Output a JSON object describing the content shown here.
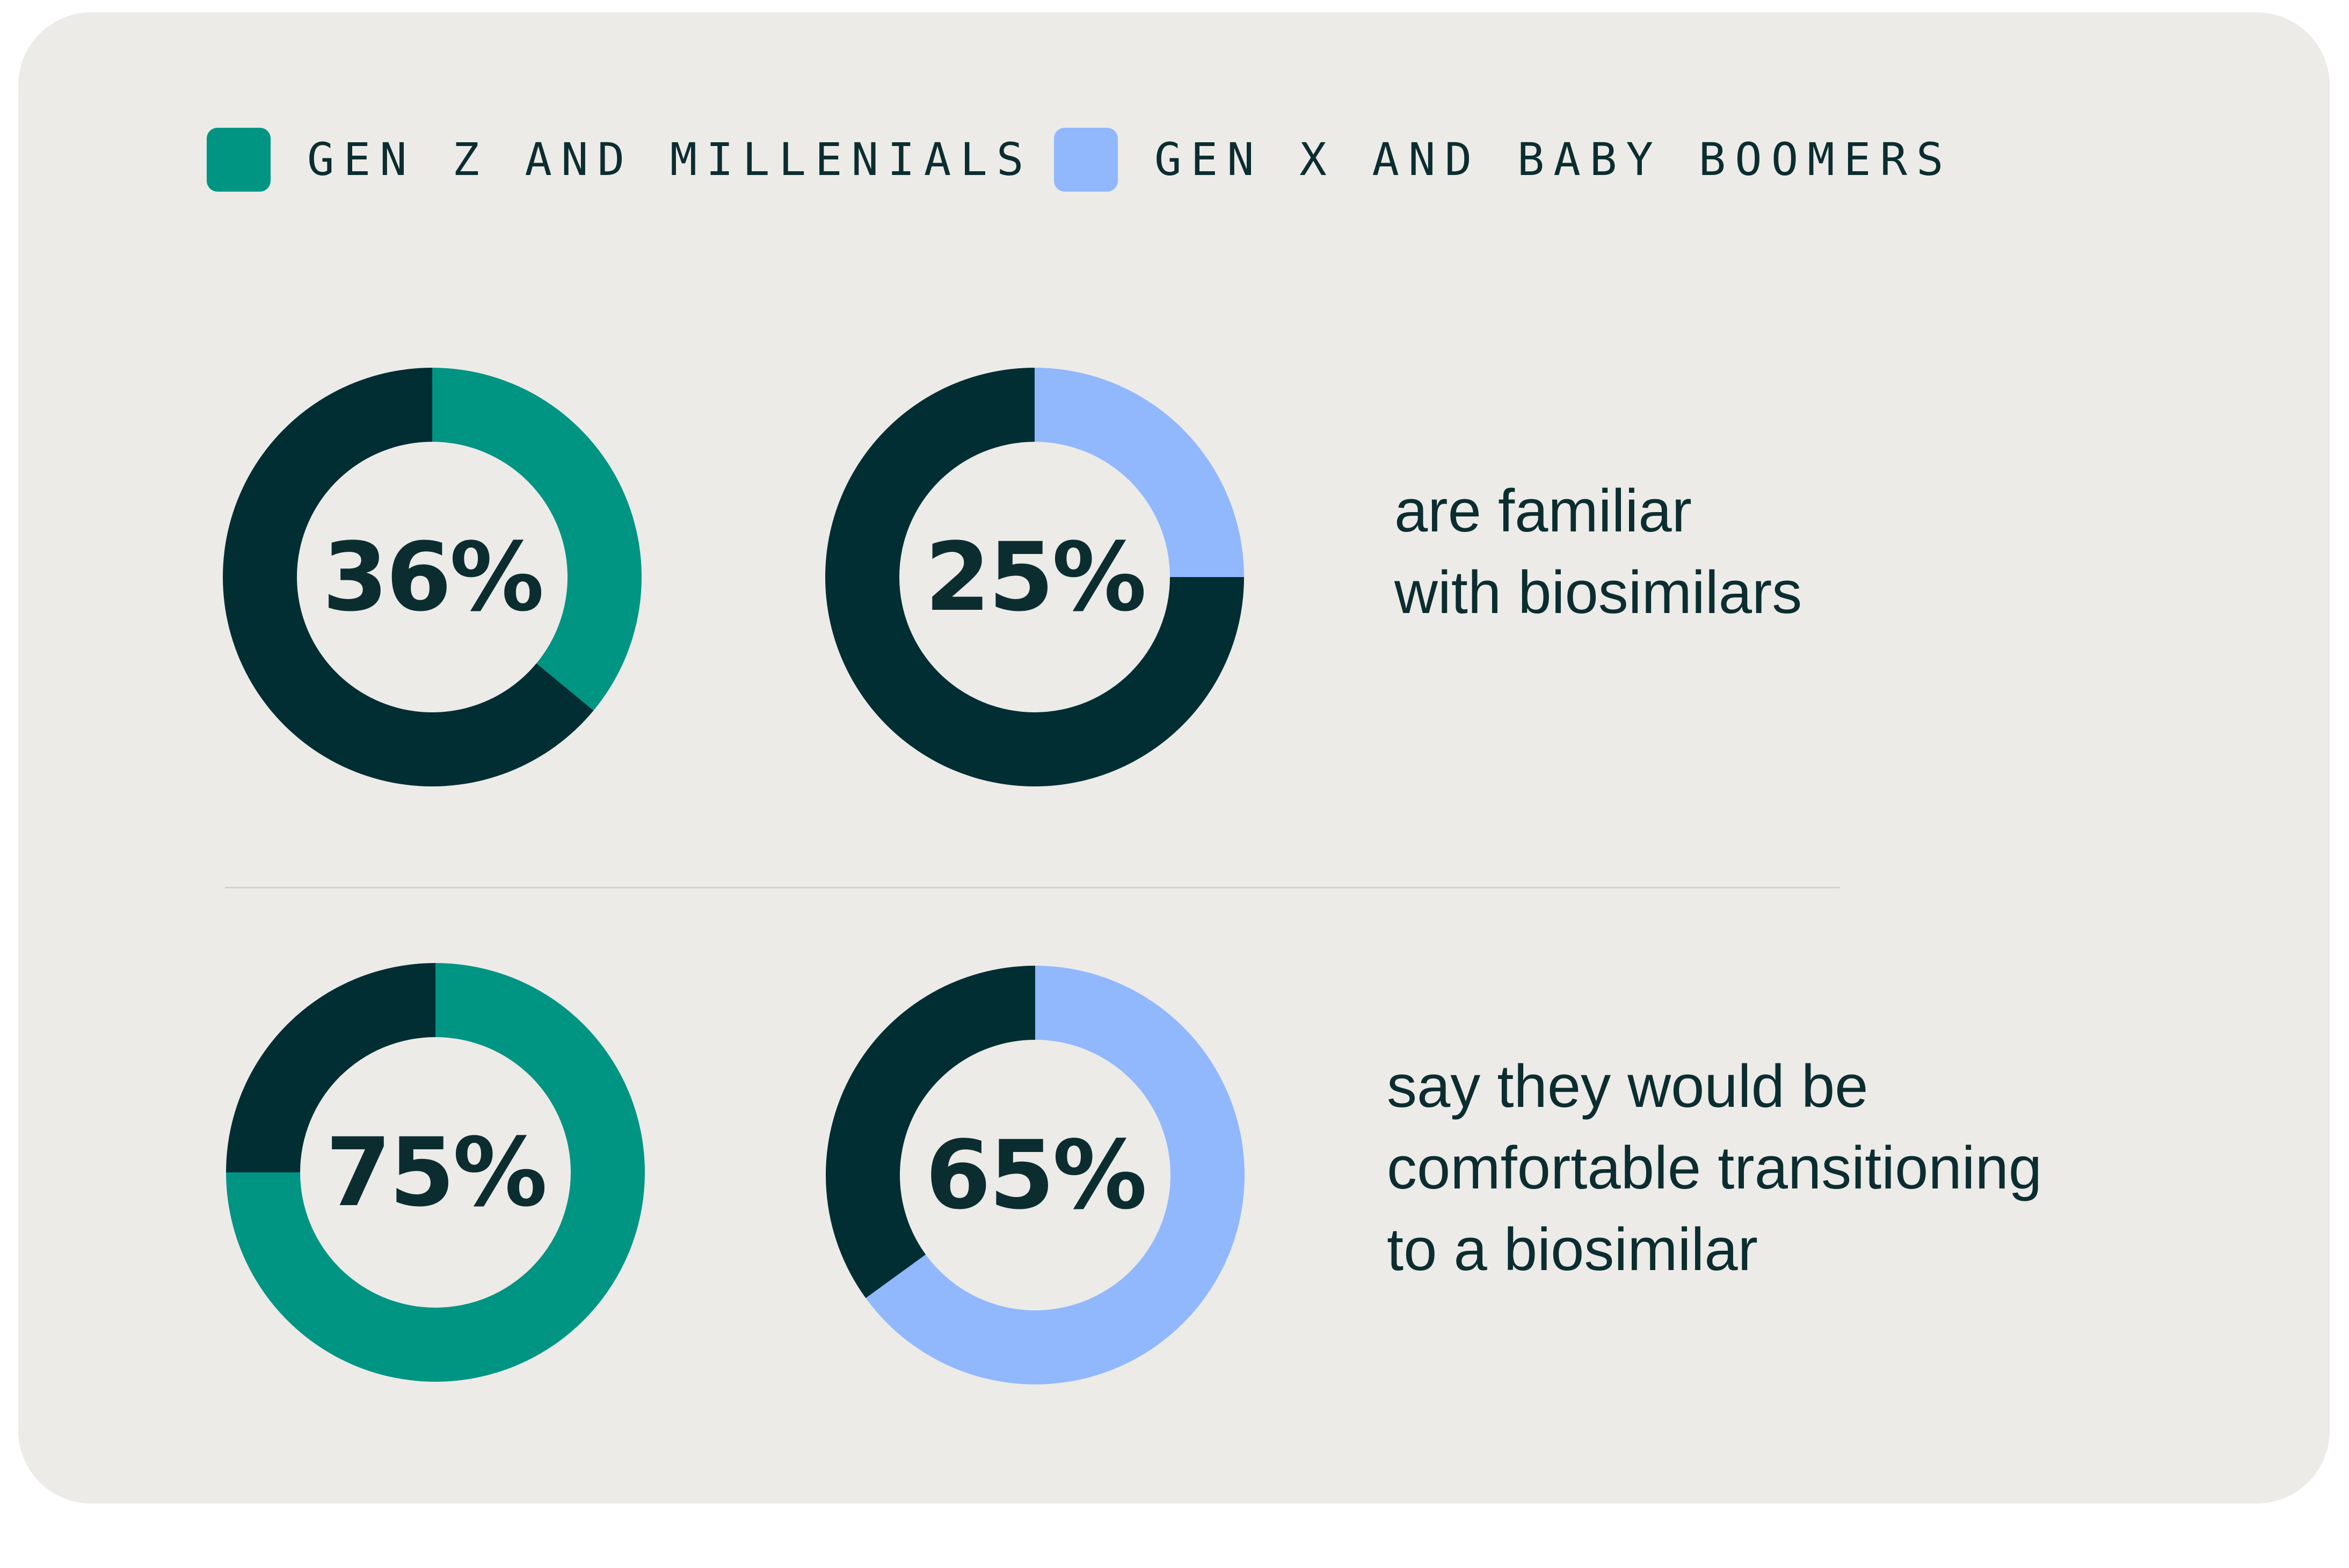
{
  "colors": {
    "gen_z": "#009483",
    "gen_x": "#91b8fc",
    "remainder": "#012e33",
    "background": "#ecebe8",
    "text": "#0c2d30"
  },
  "legend": [
    {
      "label": "GEN Z AND MILLENIALS",
      "color": "#009483"
    },
    {
      "label": "GEN X AND BABY BOOMERS",
      "color": "#91b8fc"
    }
  ],
  "chart_data": [
    {
      "type": "pie",
      "title": "",
      "statement": "are familiar\nwith biosimilars",
      "series": [
        {
          "name": "GEN Z AND MILLENIALS",
          "value": 36,
          "label": "36%"
        },
        {
          "name": "GEN X AND BABY BOOMERS",
          "value": 25,
          "label": "25%"
        }
      ]
    },
    {
      "type": "pie",
      "title": "",
      "statement": "say they would be\ncomfortable transitioning\nto a biosimilar",
      "series": [
        {
          "name": "GEN Z AND MILLENIALS",
          "value": 75,
          "label": "75%"
        },
        {
          "name": "GEN X AND BABY BOOMERS",
          "value": 65,
          "label": "65%"
        }
      ]
    }
  ]
}
